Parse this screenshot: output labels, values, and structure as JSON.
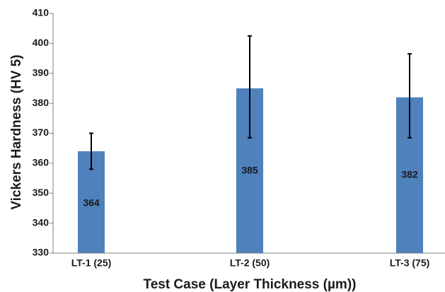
{
  "chart_data": {
    "type": "bar",
    "categories": [
      "LT-1 (25)",
      "LT-2 (50)",
      "LT-3 (75)"
    ],
    "values": [
      364,
      385,
      382
    ],
    "data_labels": [
      "364",
      "385",
      "382"
    ],
    "error_bars": [
      {
        "low": 358,
        "high": 370
      },
      {
        "low": 368.5,
        "high": 402.5
      },
      {
        "low": 368.5,
        "high": 396.5
      }
    ],
    "xlabel": "Test Case (Layer Thickness (µm))",
    "ylabel": "Vickers Hardness (HV 5)",
    "ylim": [
      330,
      410
    ],
    "yticks": [
      330,
      340,
      350,
      360,
      370,
      380,
      390,
      400,
      410
    ],
    "grid": false,
    "bar_color": "#4f81bd",
    "error_color": "#000000"
  }
}
